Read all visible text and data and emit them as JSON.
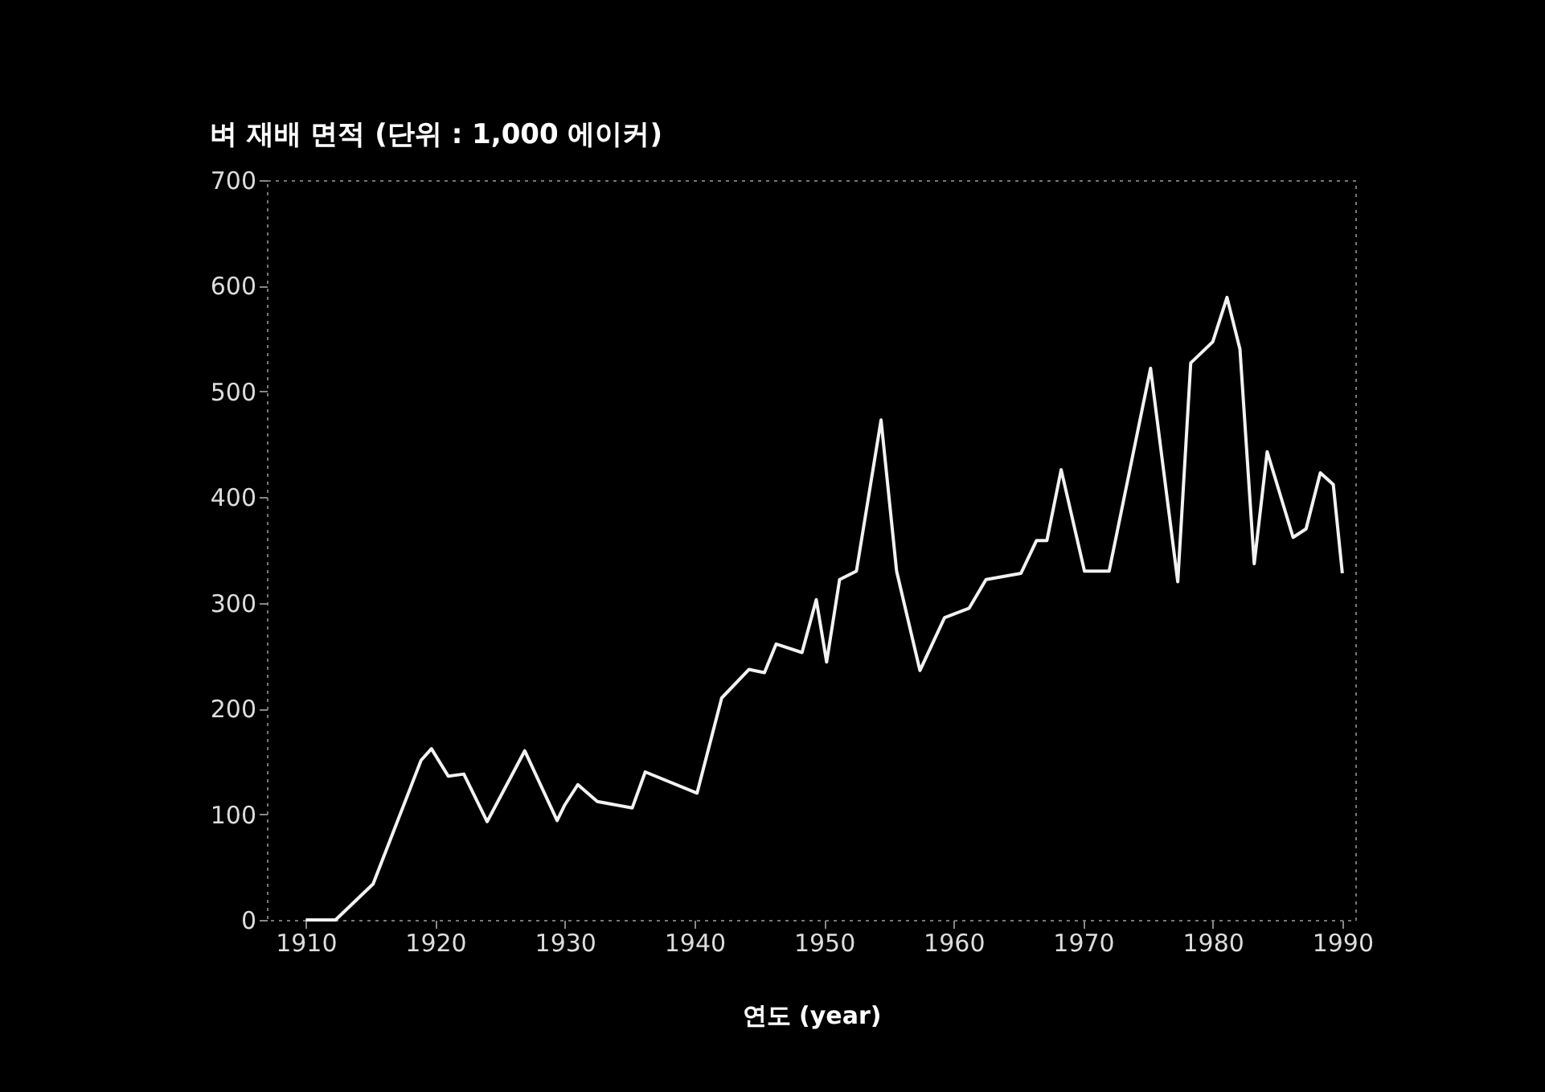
{
  "chart_data": {
    "type": "line",
    "title": "벼 재배 면적 (단위 : 1,000 에이커)",
    "xlabel": "연도 (year)",
    "x": [
      1910,
      1912.3,
      1915.2,
      1918.9,
      1919.7,
      1921,
      1922.2,
      1924,
      1926.9,
      1929.4,
      1930,
      1931,
      1932.5,
      1935.2,
      1936.2,
      1940.2,
      1942.1,
      1944.2,
      1945.4,
      1946.3,
      1948.3,
      1949.4,
      1950.2,
      1951.2,
      1952.5,
      1954.4,
      1955.6,
      1957.4,
      1959.3,
      1961.2,
      1962.5,
      1965.2,
      1966.4,
      1967.2,
      1968.3,
      1970.1,
      1972,
      1975.2,
      1977.3,
      1978.3,
      1980,
      1981.1,
      1982.1,
      1983.2,
      1984.2,
      1986.2,
      1987.2,
      1988.3,
      1989.3,
      1990
    ],
    "series": [
      {
        "color": "#f2f2f2",
        "values": [
          0,
          0,
          34,
          151,
          162,
          136,
          138,
          93,
          160,
          94,
          109,
          128,
          112,
          106,
          140,
          120,
          210,
          237,
          234,
          261,
          253,
          303,
          244,
          322,
          330,
          473,
          330,
          236,
          286,
          295,
          322,
          328,
          359,
          359,
          426,
          330,
          330,
          522,
          320,
          527,
          547,
          589,
          540,
          337,
          443,
          362,
          370,
          423,
          412,
          328
        ]
      }
    ],
    "xlim": [
      1907,
      1991
    ],
    "xticks": [
      1910,
      1920,
      1930,
      1940,
      1950,
      1960,
      1970,
      1980,
      1990
    ],
    "ylim": [
      0,
      700
    ],
    "yticks": [
      0,
      100,
      200,
      300,
      400,
      500,
      600,
      700
    ],
    "grid": false,
    "legend": false,
    "marker": "none",
    "line_style": "solid"
  }
}
